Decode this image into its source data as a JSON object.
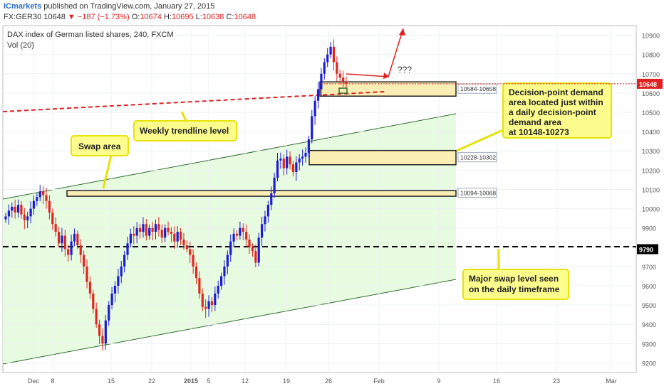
{
  "header": {
    "brand": "ICmarkets",
    "published": "published on TradingView.com, January 27, 2015",
    "symbol": "FX:GER30",
    "last": "10648",
    "change": "▼ −187 (−1.73%)",
    "ohlc": "O:10674 H:10695 L:10638 C:10648",
    "o_label": "O:",
    "o_val": "10674",
    "h_label": "H:",
    "h_val": "10695",
    "l_label": "L:",
    "l_val": "10638",
    "c_label": "C:",
    "c_val": "10648"
  },
  "chart_title": "DAX index of German listed shares, 240, FXCM",
  "vol_label": "Vol (20)",
  "colors": {
    "up": "#1c1cd6",
    "down": "#e0261f",
    "zone_fill": "#fbeeb5",
    "channel_fill": "#e6fbe0",
    "note_fill": "#fdfd8e",
    "accent_red": "#e02020"
  },
  "chart_data": {
    "type": "candlestick",
    "timeframe": "240",
    "ylim": [
      9150,
      10950
    ],
    "y_ticks": [
      9200,
      9300,
      9400,
      9500,
      9600,
      9700,
      9800,
      9900,
      10000,
      10100,
      10200,
      10300,
      10400,
      10500,
      10600,
      10700,
      10800,
      10900
    ],
    "x_ticks": [
      "Dec",
      "8",
      "15",
      "22",
      "2015",
      "5",
      "12",
      "19",
      "26",
      "Feb",
      "9",
      "16",
      "23",
      "Mar"
    ],
    "last_price": "10648",
    "level_9790": "9790",
    "zones": [
      {
        "label": "10584-10658",
        "low": 10584,
        "high": 10658
      },
      {
        "label": "10228-10302",
        "low": 10228,
        "high": 10302
      },
      {
        "label": "10094-10068",
        "low": 10068,
        "high": 10094
      }
    ],
    "closes": [
      9960,
      9990,
      10010,
      9980,
      10020,
      9970,
      9940,
      9960,
      10000,
      10040,
      10060,
      10090,
      10070,
      10040,
      9980,
      9920,
      9880,
      9820,
      9860,
      9790,
      9760,
      9830,
      9870,
      9810,
      9760,
      9700,
      9620,
      9560,
      9480,
      9400,
      9340,
      9300,
      9420,
      9500,
      9560,
      9600,
      9650,
      9700,
      9760,
      9820,
      9870,
      9860,
      9900,
      9880,
      9920,
      9860,
      9900,
      9880,
      9920,
      9890,
      9850,
      9900,
      9880,
      9870,
      9830,
      9880,
      9840,
      9810,
      9790,
      9760,
      9700,
      9640,
      9560,
      9490,
      9480,
      9520,
      9500,
      9560,
      9600,
      9650,
      9700,
      9760,
      9830,
      9870,
      9860,
      9900,
      9880,
      9840,
      9800,
      9780,
      9720,
      9850,
      9920,
      9960,
      10020,
      10080,
      10160,
      10250,
      10260,
      10210,
      10270,
      10230,
      10190,
      10240,
      10260,
      10270,
      10290,
      10360,
      10480,
      10560,
      10620,
      10700,
      10760,
      10800,
      10840,
      10760,
      10700,
      10680,
      10660,
      10648
    ],
    "annotations": [
      "Swap area",
      "Weekly trendline level",
      "Decision-point demand area located just within a daily decision-point demand area at 10148-10273",
      "Major swap level seen on the daily timeframe",
      "???"
    ]
  },
  "notes": {
    "swap": "Swap area",
    "weekly": "Weekly trendline level",
    "decision_1": "Decision-point demand",
    "decision_2": "area located just within",
    "decision_3": "a daily decision-point",
    "decision_4": "demand area",
    "decision_5": "at 10148-10273",
    "major_1": "Major swap level seen",
    "major_2": "on the daily timeframe",
    "question": "???"
  }
}
